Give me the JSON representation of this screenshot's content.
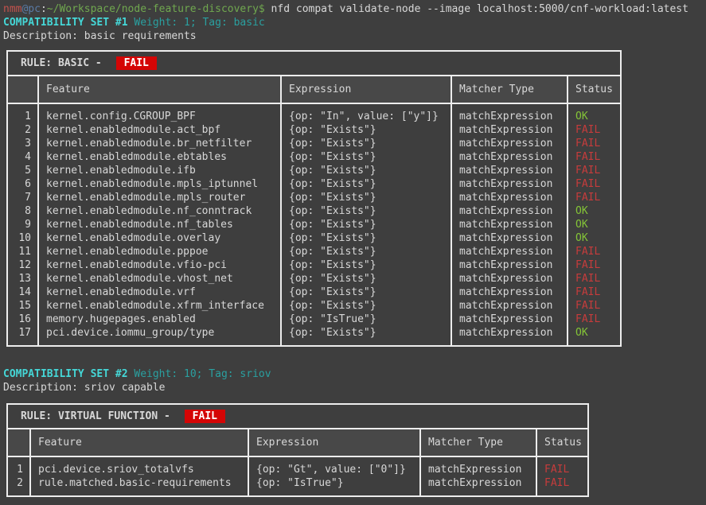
{
  "prompt": {
    "user": "nmm",
    "host": "@pc",
    "colon": ":",
    "path": "~/Workspace/node-feature-discovery",
    "dollar": "$",
    "command": " nfd compat validate-node --image localhost:5000/cnf-workload:latest"
  },
  "colors": {
    "background": "#3e3e3e",
    "border": "#ededed",
    "cyan_heading": "#45d7d7",
    "teal_meta": "#2aa0a0",
    "ok_green": "#84c437",
    "fail_red": "#c63c3c",
    "badge_red_bg": "#d40505"
  },
  "sets": [
    {
      "title": "COMPATIBILITY SET #1",
      "meta": " Weight: 1; Tag: basic",
      "description": "Description: basic requirements",
      "rule_label": "RULE: BASIC - ",
      "rule_status": "FAIL",
      "columns": [
        "",
        "Feature",
        "Expression",
        "Matcher Type",
        "Status"
      ],
      "rows": [
        [
          "1",
          "kernel.config.CGROUP_BPF",
          "{op: \"In\", value: [\"y\"]}",
          "matchExpression",
          "OK"
        ],
        [
          "2",
          "kernel.enabledmodule.act_bpf",
          "{op: \"Exists\"}",
          "matchExpression",
          "FAIL"
        ],
        [
          "3",
          "kernel.enabledmodule.br_netfilter",
          "{op: \"Exists\"}",
          "matchExpression",
          "FAIL"
        ],
        [
          "4",
          "kernel.enabledmodule.ebtables",
          "{op: \"Exists\"}",
          "matchExpression",
          "FAIL"
        ],
        [
          "5",
          "kernel.enabledmodule.ifb",
          "{op: \"Exists\"}",
          "matchExpression",
          "FAIL"
        ],
        [
          "6",
          "kernel.enabledmodule.mpls_iptunnel",
          "{op: \"Exists\"}",
          "matchExpression",
          "FAIL"
        ],
        [
          "7",
          "kernel.enabledmodule.mpls_router",
          "{op: \"Exists\"}",
          "matchExpression",
          "FAIL"
        ],
        [
          "8",
          "kernel.enabledmodule.nf_conntrack",
          "{op: \"Exists\"}",
          "matchExpression",
          "OK"
        ],
        [
          "9",
          "kernel.enabledmodule.nf_tables",
          "{op: \"Exists\"}",
          "matchExpression",
          "OK"
        ],
        [
          "10",
          "kernel.enabledmodule.overlay",
          "{op: \"Exists\"}",
          "matchExpression",
          "OK"
        ],
        [
          "11",
          "kernel.enabledmodule.pppoe",
          "{op: \"Exists\"}",
          "matchExpression",
          "FAIL"
        ],
        [
          "12",
          "kernel.enabledmodule.vfio-pci",
          "{op: \"Exists\"}",
          "matchExpression",
          "FAIL"
        ],
        [
          "13",
          "kernel.enabledmodule.vhost_net",
          "{op: \"Exists\"}",
          "matchExpression",
          "FAIL"
        ],
        [
          "14",
          "kernel.enabledmodule.vrf",
          "{op: \"Exists\"}",
          "matchExpression",
          "FAIL"
        ],
        [
          "15",
          "kernel.enabledmodule.xfrm_interface",
          "{op: \"Exists\"}",
          "matchExpression",
          "FAIL"
        ],
        [
          "16",
          "memory.hugepages.enabled",
          "{op: \"IsTrue\"}",
          "matchExpression",
          "FAIL"
        ],
        [
          "17",
          "pci.device.iommu_group/type",
          "{op: \"Exists\"}",
          "matchExpression",
          "OK"
        ]
      ]
    },
    {
      "title": "COMPATIBILITY SET #2",
      "meta": " Weight: 10; Tag: sriov",
      "description": "Description: sriov capable",
      "rule_label": "RULE: VIRTUAL FUNCTION - ",
      "rule_status": "FAIL",
      "columns": [
        "",
        "Feature",
        "Expression",
        "Matcher Type",
        "Status"
      ],
      "rows": [
        [
          "1",
          "pci.device.sriov_totalvfs",
          "{op: \"Gt\", value: [\"0\"]}",
          "matchExpression",
          "FAIL"
        ],
        [
          "2",
          "rule.matched.basic-requirements",
          "{op: \"IsTrue\"}",
          "matchExpression",
          "FAIL"
        ]
      ]
    }
  ]
}
